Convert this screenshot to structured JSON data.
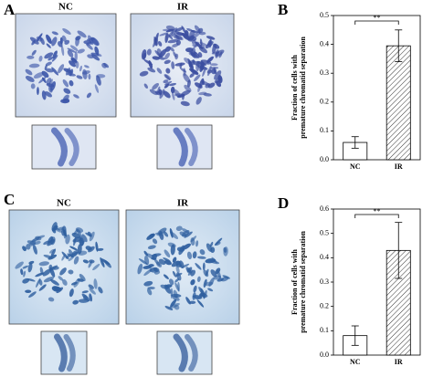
{
  "panels": {
    "labels": [
      "A",
      "B",
      "C",
      "D"
    ],
    "image_labels": [
      "NC",
      "IR",
      "NC",
      "IR"
    ]
  },
  "chart_data": [
    {
      "type": "bar",
      "ylabel": "Fraction of cells with premature chromatid separation",
      "categories": [
        "NC",
        "IR"
      ],
      "values": [
        0.06,
        0.395
      ],
      "errors": [
        0.02,
        0.055
      ],
      "ylim": [
        0,
        0.5
      ],
      "yticks": [
        {
          "value": 0,
          "label": "0.0"
        },
        0.1,
        0.2,
        0.3,
        0.4,
        0.5
      ],
      "annotation": "**",
      "colors": [
        "#ffffff",
        "hatch"
      ]
    },
    {
      "type": "bar",
      "ylabel": "Fraction of cells with premature chromatid separation",
      "categories": [
        "NC",
        "IR"
      ],
      "values": [
        0.08,
        0.43
      ],
      "errors": [
        0.04,
        0.115
      ],
      "ylim": [
        0,
        0.6
      ],
      "yticks": [
        {
          "value": 0,
          "label": "0.0"
        },
        0.1,
        0.2,
        0.3,
        0.4,
        0.5,
        0.6
      ],
      "annotation": "**",
      "colors": [
        "#ffffff",
        "hatch"
      ]
    }
  ]
}
